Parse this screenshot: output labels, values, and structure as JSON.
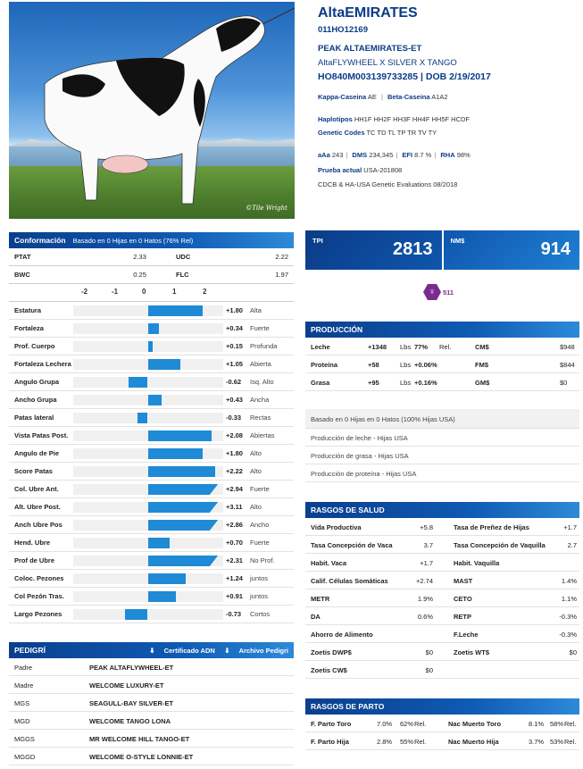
{
  "header": {
    "name": "AltaEMIRATES",
    "registration": "011HO12169",
    "full_name": "PEAK ALTAEMIRATES-ET",
    "pedigree_line": "AltaFLYWHEEL X SILVER X TANGO",
    "id_line": "HO840M003139733285 | DOB 2/19/2017",
    "kappa_label": "Kappa-Caseina",
    "kappa_value": "AE",
    "beta_label": "Beta-Caseina",
    "beta_value": "A1A2",
    "haplo_label": "Haplotipos",
    "haplo_value": "HH1F HH2F HH3F HH4F HH5F HCDF",
    "genetic_label": "Genetic Codes",
    "genetic_value": "TC TD TL TP TR TV TY",
    "aaa_label": "aAa",
    "aaa_value": "243",
    "dms_label": "DMS",
    "dms_value": "234,345",
    "efi_label": "EFI",
    "efi_value": "8.7 %",
    "rha_label": "RHA",
    "rha_value": "98%",
    "prueba_label": "Prueba actual",
    "prueba_value": "USA-201808",
    "cdcb": "CDCB & HA-USA Genetic Evaluations 08/2018"
  },
  "photo": {
    "credit": "©Tile Wright"
  },
  "conformacion": {
    "title": "Conformación",
    "subtitle": "Basado en 0 Hijas en 0 Hatos (76% Rel)",
    "ptat_label": "PTAT",
    "ptat_value": "2.33",
    "udc_label": "UDC",
    "udc_value": "2.22",
    "bwc_label": "BWC",
    "bwc_value": "0.25",
    "flc_label": "FLC",
    "flc_value": "1.97",
    "scale": [
      "-2",
      "-1",
      "0",
      "1",
      "2"
    ],
    "traits": [
      {
        "name": "Estatura",
        "value": 1.8,
        "label": "+1.80",
        "desc": "Alta"
      },
      {
        "name": "Fortaleza",
        "value": 0.34,
        "label": "+0.34",
        "desc": "Fuerte"
      },
      {
        "name": "Prof. Cuerpo",
        "value": 0.15,
        "label": "+0.15",
        "desc": "Profunda"
      },
      {
        "name": "Fortaleza Lechera",
        "value": 1.05,
        "label": "+1.05",
        "desc": "Abierta"
      },
      {
        "name": "Angulo Grupa",
        "value": -0.62,
        "label": "-0.62",
        "desc": "Isq. Alto"
      },
      {
        "name": "Ancho Grupa",
        "value": 0.43,
        "label": "+0.43",
        "desc": "Ancha"
      },
      {
        "name": "Patas lateral",
        "value": -0.33,
        "label": "-0.33",
        "desc": "Rectas"
      },
      {
        "name": "Vista Patas Post.",
        "value": 2.08,
        "label": "+2.08",
        "desc": "Abiertas"
      },
      {
        "name": "Angulo de Pie",
        "value": 1.8,
        "label": "+1.80",
        "desc": "Alto"
      },
      {
        "name": "Score Patas",
        "value": 2.22,
        "label": "+2.22",
        "desc": "Alto"
      },
      {
        "name": "Col. Ubre Ant.",
        "value": 2.94,
        "label": "+2.94",
        "desc": "Fuerte"
      },
      {
        "name": "Alt. Ubre Post.",
        "value": 3.11,
        "label": "+3.11",
        "desc": "Alto"
      },
      {
        "name": "Anch Ubre Pos",
        "value": 2.86,
        "label": "+2.86",
        "desc": "Ancho"
      },
      {
        "name": "Hend. Ubre",
        "value": 0.7,
        "label": "+0.70",
        "desc": "Fuerte"
      },
      {
        "name": "Prof de Ubre",
        "value": 2.31,
        "label": "+2.31",
        "desc": "No Prof."
      },
      {
        "name": "Coloc. Pezones",
        "value": 1.24,
        "label": "+1.24",
        "desc": "juntos"
      },
      {
        "name": "Col Pezón Tras.",
        "value": 0.91,
        "label": "+0.91",
        "desc": "juntos"
      },
      {
        "name": "Largo Pezones",
        "value": -0.73,
        "label": "-0.73",
        "desc": "Cortos"
      }
    ]
  },
  "pedigri": {
    "title": "PEDIGRÍ",
    "cert_link": "Certificado ADN",
    "archive_link": "Archivo Pedigri",
    "rows": [
      {
        "k": "Padre",
        "v": "PEAK ALTAFLYWHEEL-ET"
      },
      {
        "k": "Madre",
        "v": "WELCOME LUXURY-ET"
      },
      {
        "k": "MGS",
        "v": "SEAGULL-BAY SILVER-ET"
      },
      {
        "k": "MGD",
        "v": "WELCOME TANGO LONA"
      },
      {
        "k": "MGGS",
        "v": "MR WELCOME HILL TANGO-ET"
      },
      {
        "k": "MGGD",
        "v": "WELCOME O-STYLE LONNIE-ET"
      }
    ]
  },
  "indices": {
    "tpi_label": "TPI",
    "tpi_value": "2813",
    "nm_label": "NM$",
    "nm_value": "914"
  },
  "gender": {
    "symbol": "♀",
    "value": "511",
    "color": "#7b2a8f"
  },
  "produccion": {
    "title": "PRODUCCIÓN",
    "rows": [
      {
        "name": "Leche",
        "amount": "+1348",
        "unit": "Lbs",
        "pct": "77%",
        "rel": "Rel.",
        "idx": "CM$",
        "idx_val": "$948"
      },
      {
        "name": "Proteína",
        "amount": "+58",
        "unit": "Lbs",
        "pct": "+0.06%",
        "rel": "",
        "idx": "FM$",
        "idx_val": "$844"
      },
      {
        "name": "Grasa",
        "amount": "+95",
        "unit": "Lbs",
        "pct": "+0.16%",
        "rel": "",
        "idx": "GM$",
        "idx_val": "$0"
      }
    ],
    "based": "Basado en 0 Hijas en 0 Hatos (100% Hijas USA)",
    "lines": [
      "Producción de leche - Hijas USA",
      "Producción de grasa - Hijas USA",
      "Producción de proteína - Hijas USA"
    ]
  },
  "salud": {
    "title": "RASGOS DE SALUD",
    "rows": [
      {
        "l": "Vida Productiva",
        "lv": "+5.8",
        "r": "Tasa de Preñez de Hijas",
        "rv": "+1.7"
      },
      {
        "l": "Tasa Concepción de Vaca",
        "lv": "3.7",
        "r": "Tasa Concepción de Vaquilla",
        "rv": "2.7"
      },
      {
        "l": "Habit. Vaca",
        "lv": "+1.7",
        "r": "Habit. Vaquilla",
        "rv": ""
      },
      {
        "l": "Calif. Células Somáticas",
        "lv": "+2.74",
        "r": "MAST",
        "rv": "1.4%"
      },
      {
        "l": "METR",
        "lv": "1.9%",
        "r": "CETO",
        "rv": "1.1%"
      },
      {
        "l": "DA",
        "lv": "0.6%",
        "r": "RETP",
        "rv": "-0.3%"
      },
      {
        "l": "Ahorro de Alimento",
        "lv": "",
        "r": "F.Leche",
        "rv": "-0.3%"
      },
      {
        "l": "Zoetis DWP$",
        "lv": "$0",
        "r": "Zoetis WT$",
        "rv": "$0"
      },
      {
        "l": "Zoetis CW$",
        "lv": "$0",
        "r": "",
        "rv": ""
      }
    ]
  },
  "parto": {
    "title": "RASGOS DE PARTO",
    "rows": [
      {
        "l": "F. Parto Toro",
        "lv": "7.0%",
        "lp": "62%",
        "lr": "Rel.",
        "r": "Nac Muerto Toro",
        "rv": "8.1%",
        "rp": "58%",
        "rr": "Rel."
      },
      {
        "l": "F. Parto Hija",
        "lv": "2.8%",
        "lp": "55%",
        "lr": "Rel.",
        "r": "Nac Muerto Hija",
        "rv": "3.7%",
        "rp": "53%",
        "rr": "Rel."
      }
    ]
  }
}
